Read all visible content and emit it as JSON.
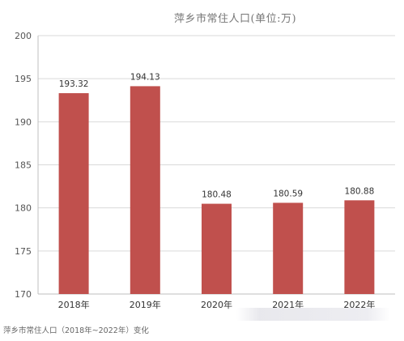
{
  "chart_data": {
    "type": "bar",
    "title": "萍乡市常住人口(单位:万)",
    "categories": [
      "2018年",
      "2019年",
      "2020年",
      "2021年",
      "2022年"
    ],
    "values": [
      193.32,
      194.13,
      180.48,
      180.59,
      180.88
    ],
    "data_labels": [
      "193.32",
      "194.13",
      "180.48",
      "180.59",
      "180.88"
    ],
    "ylim": [
      170,
      200
    ],
    "yticks": [
      170,
      175,
      180,
      185,
      190,
      195,
      200
    ],
    "grid": true,
    "legend": "none",
    "bar_color": "#c0504d",
    "caption": "萍乡市常住人口（2018年~2022年）变化"
  }
}
